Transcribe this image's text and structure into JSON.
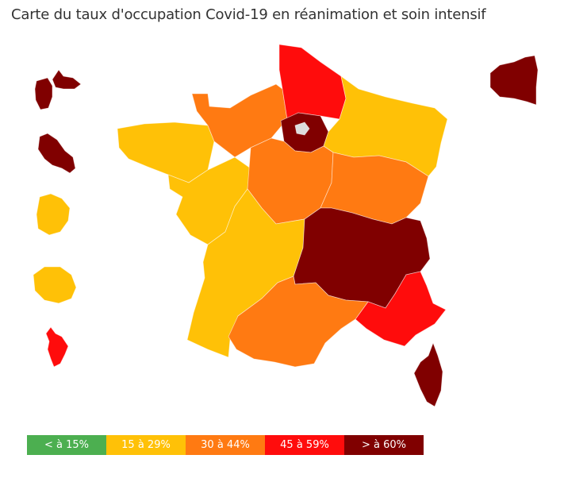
{
  "title": "Carte du taux d'occupation Covid-19 en réanimation et soin intensif",
  "colors": {
    "lt15": "#4caf50",
    "c15_29": "#ffc107",
    "c30_44": "#ff7a12",
    "c45_59": "#ff0c0c",
    "gt60": "#800000",
    "no_data": "#dddddd"
  },
  "legend": [
    {
      "label": "< à 15%",
      "color": "#4caf50"
    },
    {
      "label": "15 à 29%",
      "color": "#ffc107"
    },
    {
      "label": "30 à 44%",
      "color": "#ff7a12"
    },
    {
      "label": "45 à 59%",
      "color": "#ff0c0c"
    },
    {
      "label": "> à 60%",
      "color": "#800000"
    }
  ],
  "regions": {
    "guadeloupe": "> à 60%",
    "martinique": "> à 60%",
    "guyane": "15 à 29%",
    "la_reunion": "15 à 29%",
    "mayotte": "45 à 59%",
    "saint_pierre_miquelon": "> à 60%",
    "hauts_de_france": "45 à 59%",
    "ile_de_france": "> à 60%",
    "grand_est": "15 à 29%",
    "normandie": "30 à 44%",
    "bretagne": "15 à 29%",
    "pays_de_la_loire": "15 à 29%",
    "centre_val_de_loire": "30 à 44%",
    "bourgogne_franche_comte": "30 à 44%",
    "nouvelle_aquitaine": "15 à 29%",
    "auvergne_rhone_alpes": "> à 60%",
    "occitanie": "30 à 44%",
    "provence_alpes_cote_d_azur": "45 à 59%",
    "corse": "> à 60%"
  }
}
